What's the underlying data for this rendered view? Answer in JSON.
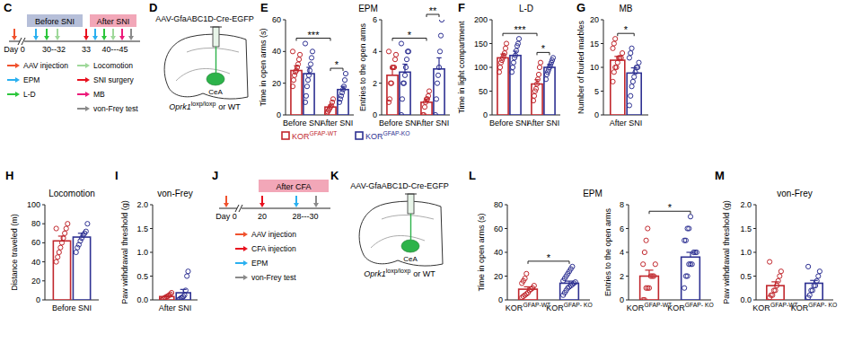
{
  "chart_data": [
    {
      "type": "bar",
      "panel": "E",
      "title": "EPM",
      "ylabel": "Time in open arms (s)",
      "categories": [
        "Before SNI",
        "After SNI"
      ],
      "ylim": [
        0,
        60
      ],
      "yticks": [
        0,
        20,
        40,
        60
      ],
      "legend": "bottom",
      "series": [
        {
          "name": "KORGFAP-WT",
          "color": "#c1272d",
          "values": [
            28,
            5
          ],
          "errors": [
            3,
            1.2
          ],
          "points": [
            [
              18,
              22,
              25,
              27,
              28,
              30,
              32,
              35,
              38,
              40
            ],
            [
              1,
              2,
              3,
              4,
              5,
              6,
              8,
              10
            ]
          ]
        },
        {
          "name": "KORGFAP-KO",
          "color": "#2e3192",
          "values": [
            26,
            16
          ],
          "errors": [
            4,
            2
          ],
          "points": [
            [
              8,
              12,
              18,
              22,
              25,
              28,
              32,
              36,
              40,
              45
            ],
            [
              8,
              10,
              12,
              14,
              16,
              18,
              22,
              26
            ]
          ]
        }
      ],
      "significance": [
        {
          "label": "***",
          "bars": [
            [
              0,
              0
            ],
            [
              1,
              0
            ]
          ]
        },
        {
          "label": "*",
          "bars": [
            [
              1,
              0
            ],
            [
              1,
              1
            ]
          ]
        }
      ]
    },
    {
      "type": "bar",
      "ylabel": "Entries to the open arms",
      "categories": [
        "Before SNI",
        "After SNI"
      ],
      "ylim": [
        0,
        6
      ],
      "yticks": [
        0,
        2,
        4,
        6
      ],
      "series": [
        {
          "color": "#c1272d",
          "values": [
            2.5,
            0.8
          ],
          "errors": [
            0.4,
            0.2
          ],
          "points": [
            [
              0.8,
              1,
              2,
              2,
              3,
              3,
              3,
              3.5,
              3.8,
              4
            ],
            [
              0,
              0,
              0.5,
              0.8,
              1,
              1,
              1.2,
              1.5
            ]
          ]
        },
        {
          "color": "#2e3192",
          "values": [
            2.7,
            2.9
          ],
          "errors": [
            0.5,
            0.7
          ],
          "points": [
            [
              0,
              1,
              2,
              2,
              2.5,
              3,
              3.5,
              4,
              4,
              4.5
            ],
            [
              0,
              1,
              2,
              2.5,
              3,
              4,
              5,
              6
            ]
          ]
        }
      ],
      "significance": [
        {
          "label": "*",
          "bars": [
            [
              0,
              0
            ],
            [
              1,
              0
            ]
          ]
        },
        {
          "label": "**",
          "bars": [
            [
              1,
              0
            ],
            [
              1,
              1
            ]
          ]
        }
      ]
    },
    {
      "type": "bar",
      "panel": "F",
      "title": "L-D",
      "ylabel": "Time in light compartment",
      "categories": [
        "Before SNI",
        "After SNI"
      ],
      "ylim": [
        0,
        200
      ],
      "yticks": [
        0,
        50,
        100,
        150,
        200
      ],
      "series": [
        {
          "color": "#c1272d",
          "values": [
            120,
            65
          ],
          "errors": [
            8,
            9
          ],
          "points": [
            [
              90,
              100,
              110,
              115,
              120,
              125,
              130,
              140,
              150
            ],
            [
              30,
              40,
              50,
              55,
              65,
              75,
              85,
              100,
              110
            ]
          ]
        },
        {
          "color": "#2e3192",
          "values": [
            125,
            100
          ],
          "errors": [
            9,
            6
          ],
          "points": [
            [
              90,
              100,
              110,
              120,
              125,
              135,
              145,
              150,
              160
            ],
            [
              75,
              85,
              90,
              95,
              100,
              105,
              110,
              115,
              120
            ]
          ]
        }
      ],
      "significance": [
        {
          "label": "***",
          "bars": [
            [
              0,
              0
            ],
            [
              1,
              0
            ]
          ]
        },
        {
          "label": "*",
          "bars": [
            [
              1,
              0
            ],
            [
              1,
              1
            ]
          ]
        }
      ]
    },
    {
      "type": "bar",
      "panel": "G",
      "title": "MB",
      "ylabel": "Number of buried marbles",
      "categories": [
        "After SNI"
      ],
      "ylim": [
        0,
        20
      ],
      "yticks": [
        0,
        5,
        10,
        15,
        20
      ],
      "series": [
        {
          "color": "#c1272d",
          "values": [
            11.5
          ],
          "errors": [
            0.8
          ],
          "points": [
            [
              7,
              9,
              10,
              10,
              11,
              12,
              12,
              12,
              13,
              14,
              15,
              16
            ]
          ]
        },
        {
          "color": "#2e3192",
          "values": [
            8.8
          ],
          "errors": [
            1.1
          ],
          "points": [
            [
              2,
              4,
              6,
              7,
              8,
              9,
              10,
              10,
              11,
              12,
              13,
              14
            ]
          ]
        }
      ],
      "significance": [
        {
          "label": "*",
          "bars": [
            [
              0,
              0
            ],
            [
              0,
              1
            ]
          ]
        }
      ]
    },
    {
      "type": "bar",
      "panel": "H",
      "title": "Locomotion",
      "ylabel": "Distance traveled (m)",
      "categories": [
        "Before SNI"
      ],
      "ylim": [
        0,
        100
      ],
      "yticks": [
        0,
        20,
        40,
        60,
        80,
        100
      ],
      "series": [
        {
          "color": "#c1272d",
          "values": [
            62
          ],
          "errors": [
            5
          ],
          "points": [
            [
              40,
              45,
              50,
              55,
              60,
              65,
              70,
              75,
              80,
              75
            ]
          ]
        },
        {
          "color": "#2e3192",
          "values": [
            66
          ],
          "errors": [
            4
          ],
          "points": [
            [
              50,
              55,
              58,
              62,
              65,
              68,
              70,
              72,
              80
            ]
          ]
        }
      ]
    },
    {
      "type": "bar",
      "panel": "I",
      "title": "von-Frey",
      "ylabel": "Paw withdrawal threshold (g)",
      "categories": [
        "After SNI"
      ],
      "ylim": [
        0,
        2
      ],
      "yticks": [
        {
          "value": 0,
          "label": "0.0"
        },
        {
          "value": 0.5,
          "label": "0.5"
        },
        {
          "value": 1,
          "label": "1.0"
        },
        {
          "value": 1.5,
          "label": "1.5"
        },
        {
          "value": 2,
          "label": "2.0"
        }
      ],
      "series": [
        {
          "color": "#c1272d",
          "values": [
            0.07
          ],
          "errors": [
            0.02
          ],
          "points": [
            [
              0,
              0.02,
              0.04,
              0.05,
              0.07,
              0.08,
              0.1,
              0.12,
              0.15
            ]
          ]
        },
        {
          "color": "#2e3192",
          "values": [
            0.15
          ],
          "errors": [
            0.07
          ],
          "points": [
            [
              0,
              0.02,
              0.04,
              0.05,
              0.07,
              0.1,
              0.2,
              0.5,
              0.6
            ]
          ]
        }
      ]
    },
    {
      "type": "bar",
      "panel": "L",
      "title": "EPM",
      "ylabel": "Time in open arms (s)",
      "categories": [
        "KORGFAP-WT",
        "KORGFAP- KO"
      ],
      "ylim": [
        0,
        80
      ],
      "yticks": [
        0,
        20,
        40,
        60,
        80
      ],
      "values": [
        9,
        14
      ],
      "errors": [
        2,
        1.8
      ],
      "colors": [
        "#c1272d",
        "#2e3192"
      ],
      "points": [
        [
          2,
          3,
          4,
          5,
          6,
          8,
          9,
          10,
          12,
          14,
          16,
          18,
          22
        ],
        [
          4,
          6,
          8,
          10,
          11,
          12,
          13,
          14,
          15,
          16,
          18,
          20,
          22,
          24,
          26,
          28
        ]
      ],
      "significance": [
        {
          "label": "*",
          "bars": [
            [
              0,
              0
            ],
            [
              1,
              0
            ]
          ]
        }
      ]
    },
    {
      "type": "bar",
      "ylabel": "Entries to the open arms",
      "categories": [
        "KORGFAP-WT",
        "KORGFAP- KO"
      ],
      "ylim": [
        0,
        8
      ],
      "yticks": [
        0,
        2,
        4,
        6,
        8
      ],
      "values": [
        2,
        3.6
      ],
      "errors": [
        0.5,
        0.4
      ],
      "colors": [
        "#c1272d",
        "#2e3192"
      ],
      "points": [
        [
          0,
          0,
          1,
          1,
          1,
          2,
          2,
          2,
          3,
          3,
          4,
          5,
          6
        ],
        [
          1,
          2,
          2,
          3,
          3,
          3,
          4,
          4,
          4,
          5,
          5,
          6,
          6,
          7
        ]
      ],
      "significance": [
        {
          "label": "*",
          "bars": [
            [
              0,
              0
            ],
            [
              1,
              0
            ]
          ]
        }
      ]
    },
    {
      "type": "bar",
      "panel": "M",
      "title": "von-Frey",
      "ylabel": "Paw withdrawal threshold (g)",
      "categories": [
        "KORGFAP-WT",
        "KORGFAP- KO"
      ],
      "ylim": [
        0,
        2
      ],
      "yticks": [
        {
          "value": 0,
          "label": "0.0"
        },
        {
          "value": 0.5,
          "label": "0.5"
        },
        {
          "value": 1,
          "label": "1.0"
        },
        {
          "value": 1.5,
          "label": "1.5"
        },
        {
          "value": 2,
          "label": "2.0"
        }
      ],
      "values": [
        0.3,
        0.35
      ],
      "errors": [
        0.08,
        0.06
      ],
      "colors": [
        "#c1272d",
        "#2e3192"
      ],
      "points": [
        [
          0.05,
          0.1,
          0.1,
          0.2,
          0.2,
          0.3,
          0.4,
          0.5,
          0.6,
          0.8
        ],
        [
          0.05,
          0.1,
          0.2,
          0.2,
          0.3,
          0.3,
          0.4,
          0.5,
          0.6,
          0.7
        ]
      ]
    }
  ],
  "diagrams": {
    "C": {
      "panel": "C",
      "phases": [
        {
          "label": "Before SNI",
          "color": "#b6bfd9"
        },
        {
          "label": "After SNI",
          "color": "#f2a7b8"
        }
      ],
      "day_labels": [
        "Day 0",
        "30--32",
        "33",
        "40---45"
      ],
      "legend": [
        [
          {
            "label": "AAV injection",
            "color": "#f0522e"
          },
          {
            "label": "EPM",
            "color": "#2ab0f0"
          },
          {
            "label": "L-D",
            "color": "#2cc63c"
          }
        ],
        [
          {
            "label": "Locomotion",
            "color": "#9fd89a"
          },
          {
            "label": "SNI surgery",
            "color": "#e8101e"
          },
          {
            "label": "MB",
            "color": "#ec1a7a"
          },
          {
            "label": "von-Frey test",
            "color": "#8a8a8a"
          }
        ]
      ]
    },
    "D": {
      "panel": "D",
      "vector": "AAV-GfaABC1D-Cre-EGFP",
      "region": "CeA",
      "genotype": {
        "gene": "Oprk1",
        "allele": "loxp/loxp",
        "suffix": "or WT"
      }
    },
    "J": {
      "panel": "J",
      "phases": [
        {
          "label": "After CFA",
          "color": "#f2a7b8"
        }
      ],
      "day_labels": [
        "Day 0",
        "20",
        "28---30"
      ],
      "legend": [
        [
          {
            "label": "AAV injection",
            "color": "#f0522e"
          },
          {
            "label": "CFA injection",
            "color": "#e8101e"
          },
          {
            "label": "EPM",
            "color": "#2ab0f0"
          },
          {
            "label": "von-Frey test",
            "color": "#8a8a8a"
          }
        ]
      ]
    },
    "K": {
      "panel": "K",
      "vector": "AAV-GfaABC1D-Cre-EGFP",
      "region": "CeA",
      "genotype": {
        "gene": "Oprk1",
        "allele": "loxp/loxp",
        "suffix": "or WT"
      }
    }
  }
}
